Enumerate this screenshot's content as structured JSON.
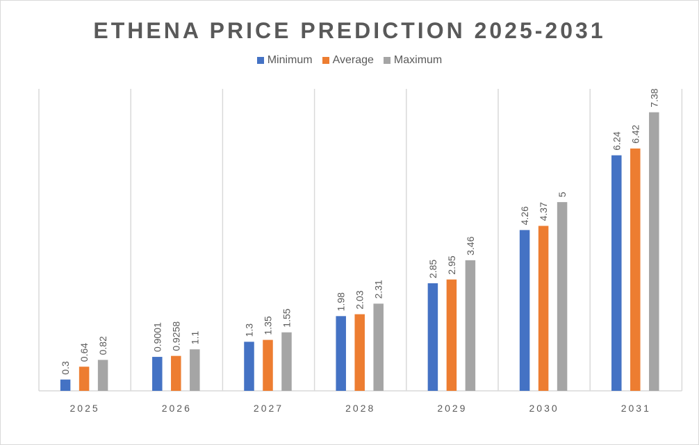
{
  "chart_data": {
    "type": "bar",
    "title": "ETHENA PRICE PREDICTION 2025-2031",
    "categories": [
      "2025",
      "2026",
      "2027",
      "2028",
      "2029",
      "2030",
      "2031"
    ],
    "series": [
      {
        "name": "Minimum",
        "color": "#4472c4",
        "values": [
          0.3,
          0.9001,
          1.3,
          1.98,
          2.85,
          4.26,
          6.24
        ],
        "labels": [
          "0.3",
          "0.9001",
          "1.3",
          "1.98",
          "2.85",
          "4.26",
          "6.24"
        ]
      },
      {
        "name": "Average",
        "color": "#ed7d31",
        "values": [
          0.64,
          0.9258,
          1.35,
          2.03,
          2.95,
          4.37,
          6.42
        ],
        "labels": [
          "0.64",
          "0.9258",
          "1.35",
          "2.03",
          "2.95",
          "4.37",
          "6.42"
        ]
      },
      {
        "name": "Maximum",
        "color": "#a5a5a5",
        "values": [
          0.82,
          1.1,
          1.55,
          2.31,
          3.46,
          5,
          7.38
        ],
        "labels": [
          "0.82",
          "1.1",
          "1.55",
          "2.31",
          "3.46",
          "5",
          "7.38"
        ]
      }
    ],
    "ylim": [
      0,
      8
    ],
    "grid": "vertical category separators",
    "legend": "top",
    "xlabel": "",
    "ylabel": ""
  }
}
